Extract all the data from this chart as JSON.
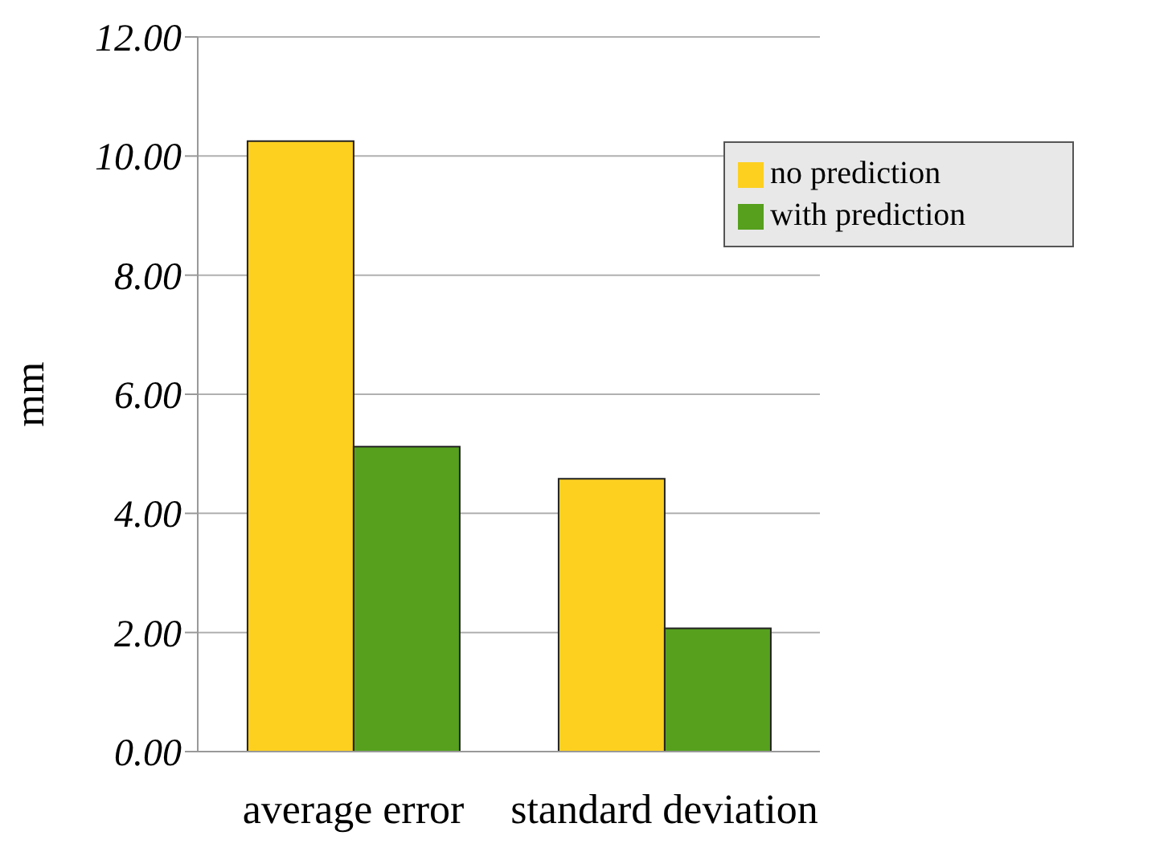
{
  "chart_data": {
    "type": "bar",
    "ylabel": "mm",
    "categories": [
      "average error",
      "standard deviation"
    ],
    "series": [
      {
        "name": "no prediction",
        "color": "#fdd020",
        "values": [
          10.25,
          4.58
        ]
      },
      {
        "name": "with prediction",
        "color": "#56a01e",
        "values": [
          5.12,
          2.07
        ]
      }
    ],
    "ylim": [
      0,
      12
    ],
    "yticks": [
      {
        "value": 0,
        "label": "0.00"
      },
      {
        "value": 2,
        "label": "2.00"
      },
      {
        "value": 4,
        "label": "4.00"
      },
      {
        "value": 6,
        "label": "6.00"
      },
      {
        "value": 8,
        "label": "8.00"
      },
      {
        "value": 10,
        "label": "10.00"
      },
      {
        "value": 12,
        "label": "12.00"
      }
    ],
    "grid": "y",
    "legend": "top right"
  }
}
